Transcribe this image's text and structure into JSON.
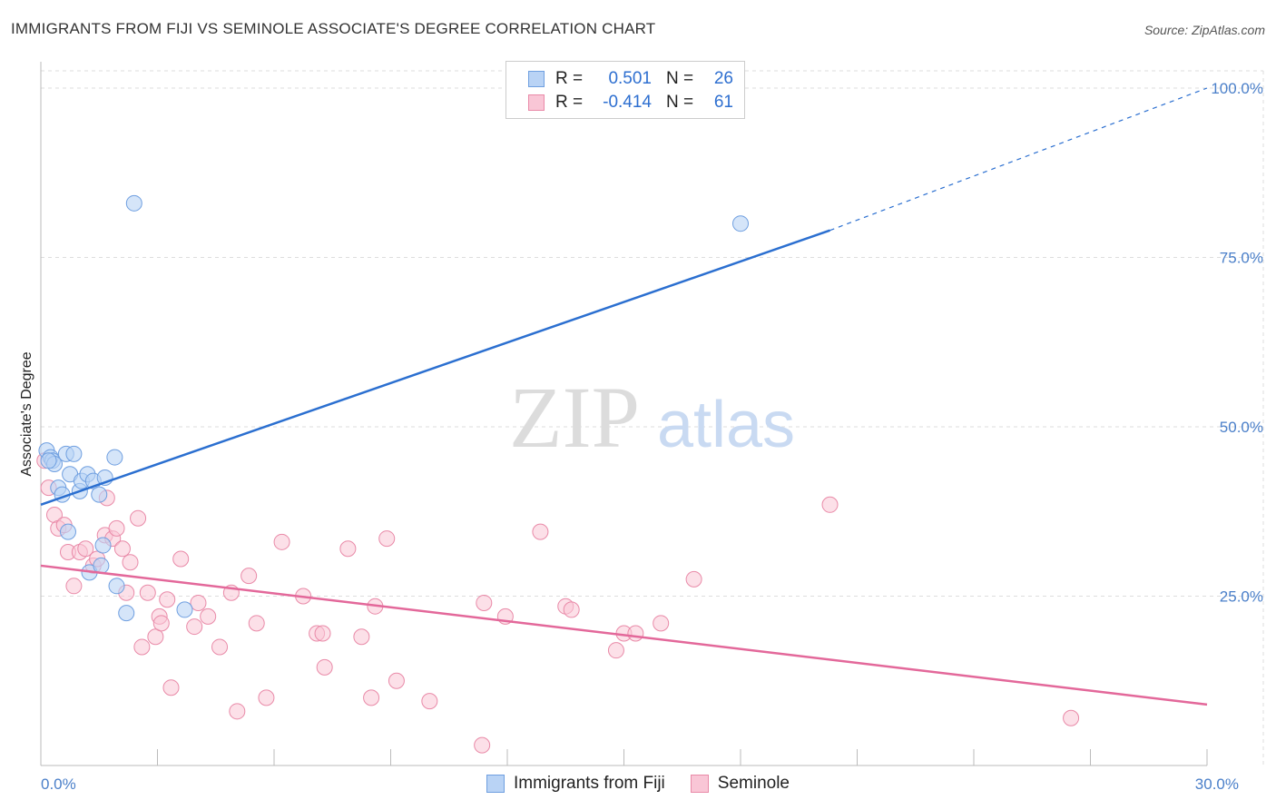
{
  "title": "IMMIGRANTS FROM FIJI VS SEMINOLE ASSOCIATE'S DEGREE CORRELATION CHART",
  "source": "Source: ZipAtlas.com",
  "watermark": {
    "zip": "ZIP",
    "atlas": "atlas"
  },
  "colors": {
    "fiji_fill": "#b9d3f5",
    "fiji_stroke": "#6f9fe0",
    "fiji_line": "#2b6fd0",
    "seminole_fill": "#f9c6d6",
    "seminole_stroke": "#e98aa8",
    "seminole_line": "#e3689a",
    "tick_label": "#4a7fc9",
    "grid": "#dddddd"
  },
  "legend": {
    "rows": [
      {
        "r_label": "R =",
        "r_value": "0.501",
        "n_label": "N =",
        "n_value": "26"
      },
      {
        "r_label": "R =",
        "r_value": "-0.414",
        "n_label": "N =",
        "n_value": "61"
      }
    ]
  },
  "bottom_legend": [
    "Immigrants from Fiji",
    "Seminole"
  ],
  "chart_data": {
    "type": "scatter",
    "title": "IMMIGRANTS FROM FIJI VS SEMINOLE ASSOCIATE'S DEGREE CORRELATION CHART",
    "xlabel": "",
    "ylabel": "Associate's Degree",
    "xlim": [
      0,
      30
    ],
    "ylim": [
      0,
      102
    ],
    "x_tick_labels": [
      {
        "value": 0,
        "label": "0.0%"
      },
      {
        "value": 30,
        "label": "30.0%"
      }
    ],
    "y_tick_labels": [
      {
        "value": 25,
        "label": "25.0%"
      },
      {
        "value": 50,
        "label": "50.0%"
      },
      {
        "value": 75,
        "label": "75.0%"
      },
      {
        "value": 100,
        "label": "100.0%"
      }
    ],
    "grid": true,
    "legend_position": "top-center",
    "series": [
      {
        "name": "Immigrants from Fiji",
        "color": "#6f9fe0",
        "points": [
          [
            0.15,
            46.5
          ],
          [
            0.25,
            45.5
          ],
          [
            0.3,
            45.0
          ],
          [
            0.35,
            44.5
          ],
          [
            0.45,
            41.0
          ],
          [
            0.55,
            40.0
          ],
          [
            0.65,
            46.0
          ],
          [
            0.75,
            43.0
          ],
          [
            0.85,
            46.0
          ],
          [
            1.0,
            40.5
          ],
          [
            1.05,
            42.0
          ],
          [
            1.2,
            43.0
          ],
          [
            1.35,
            42.0
          ],
          [
            1.5,
            40.0
          ],
          [
            1.65,
            42.5
          ],
          [
            1.9,
            45.5
          ],
          [
            0.7,
            34.5
          ],
          [
            1.6,
            32.5
          ],
          [
            1.25,
            28.5
          ],
          [
            1.55,
            29.5
          ],
          [
            1.95,
            26.5
          ],
          [
            2.2,
            22.5
          ],
          [
            3.7,
            23.0
          ],
          [
            2.4,
            83.0
          ],
          [
            18.0,
            80.0
          ],
          [
            0.2,
            45.0
          ]
        ],
        "trend": {
          "x": [
            0,
            20.3
          ],
          "y": [
            38.5,
            79.0
          ],
          "dashed_extension_to": [
            30,
            100
          ]
        }
      },
      {
        "name": "Seminole",
        "color": "#e98aa8",
        "points": [
          [
            0.1,
            45.0
          ],
          [
            0.2,
            41.0
          ],
          [
            0.35,
            37.0
          ],
          [
            0.45,
            35.0
          ],
          [
            0.6,
            35.5
          ],
          [
            0.7,
            31.5
          ],
          [
            0.85,
            26.5
          ],
          [
            1.0,
            31.5
          ],
          [
            1.15,
            32.0
          ],
          [
            1.35,
            29.5
          ],
          [
            1.45,
            30.5
          ],
          [
            1.65,
            34.0
          ],
          [
            1.7,
            39.5
          ],
          [
            1.85,
            33.5
          ],
          [
            1.95,
            35.0
          ],
          [
            2.1,
            32.0
          ],
          [
            2.2,
            25.5
          ],
          [
            2.3,
            30.0
          ],
          [
            2.5,
            36.5
          ],
          [
            2.6,
            17.5
          ],
          [
            2.75,
            25.5
          ],
          [
            2.95,
            19.0
          ],
          [
            3.05,
            22.0
          ],
          [
            3.1,
            21.0
          ],
          [
            3.25,
            24.5
          ],
          [
            3.35,
            11.5
          ],
          [
            3.6,
            30.5
          ],
          [
            3.95,
            20.5
          ],
          [
            4.05,
            24.0
          ],
          [
            4.3,
            22.0
          ],
          [
            4.6,
            17.5
          ],
          [
            4.9,
            25.5
          ],
          [
            5.05,
            8.0
          ],
          [
            5.35,
            28.0
          ],
          [
            5.55,
            21.0
          ],
          [
            5.8,
            10.0
          ],
          [
            6.2,
            33.0
          ],
          [
            6.75,
            25.0
          ],
          [
            7.1,
            19.5
          ],
          [
            7.25,
            19.5
          ],
          [
            7.3,
            14.5
          ],
          [
            7.9,
            32.0
          ],
          [
            8.25,
            19.0
          ],
          [
            8.5,
            10.0
          ],
          [
            8.6,
            23.5
          ],
          [
            8.9,
            33.5
          ],
          [
            9.15,
            12.5
          ],
          [
            10.0,
            9.5
          ],
          [
            11.35,
            3.0
          ],
          [
            11.4,
            24.0
          ],
          [
            11.95,
            22.0
          ],
          [
            12.85,
            34.5
          ],
          [
            13.5,
            23.5
          ],
          [
            13.65,
            23.0
          ],
          [
            14.8,
            17.0
          ],
          [
            15.0,
            19.5
          ],
          [
            15.3,
            19.5
          ],
          [
            15.95,
            21.0
          ],
          [
            16.8,
            27.5
          ],
          [
            20.3,
            38.5
          ],
          [
            26.5,
            7.0
          ]
        ],
        "trend": {
          "x": [
            0,
            30
          ],
          "y": [
            29.5,
            9.0
          ]
        }
      }
    ]
  }
}
